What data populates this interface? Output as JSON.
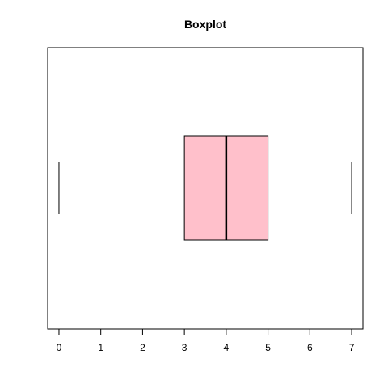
{
  "chart_data": {
    "type": "boxplot",
    "orientation": "horizontal",
    "title": "Boxplot",
    "xlabel": "",
    "ylabel": "",
    "xlim": [
      -0.27,
      7.27
    ],
    "x_ticks": [
      0,
      1,
      2,
      3,
      4,
      5,
      6,
      7
    ],
    "x_tick_labels": [
      "0",
      "1",
      "2",
      "3",
      "4",
      "5",
      "6",
      "7"
    ],
    "grid": false,
    "box": {
      "min": 0,
      "q1": 3,
      "median": 4,
      "q3": 5,
      "max": 7,
      "fill_color": "#ffc0cb",
      "border_color": "#000000"
    }
  }
}
